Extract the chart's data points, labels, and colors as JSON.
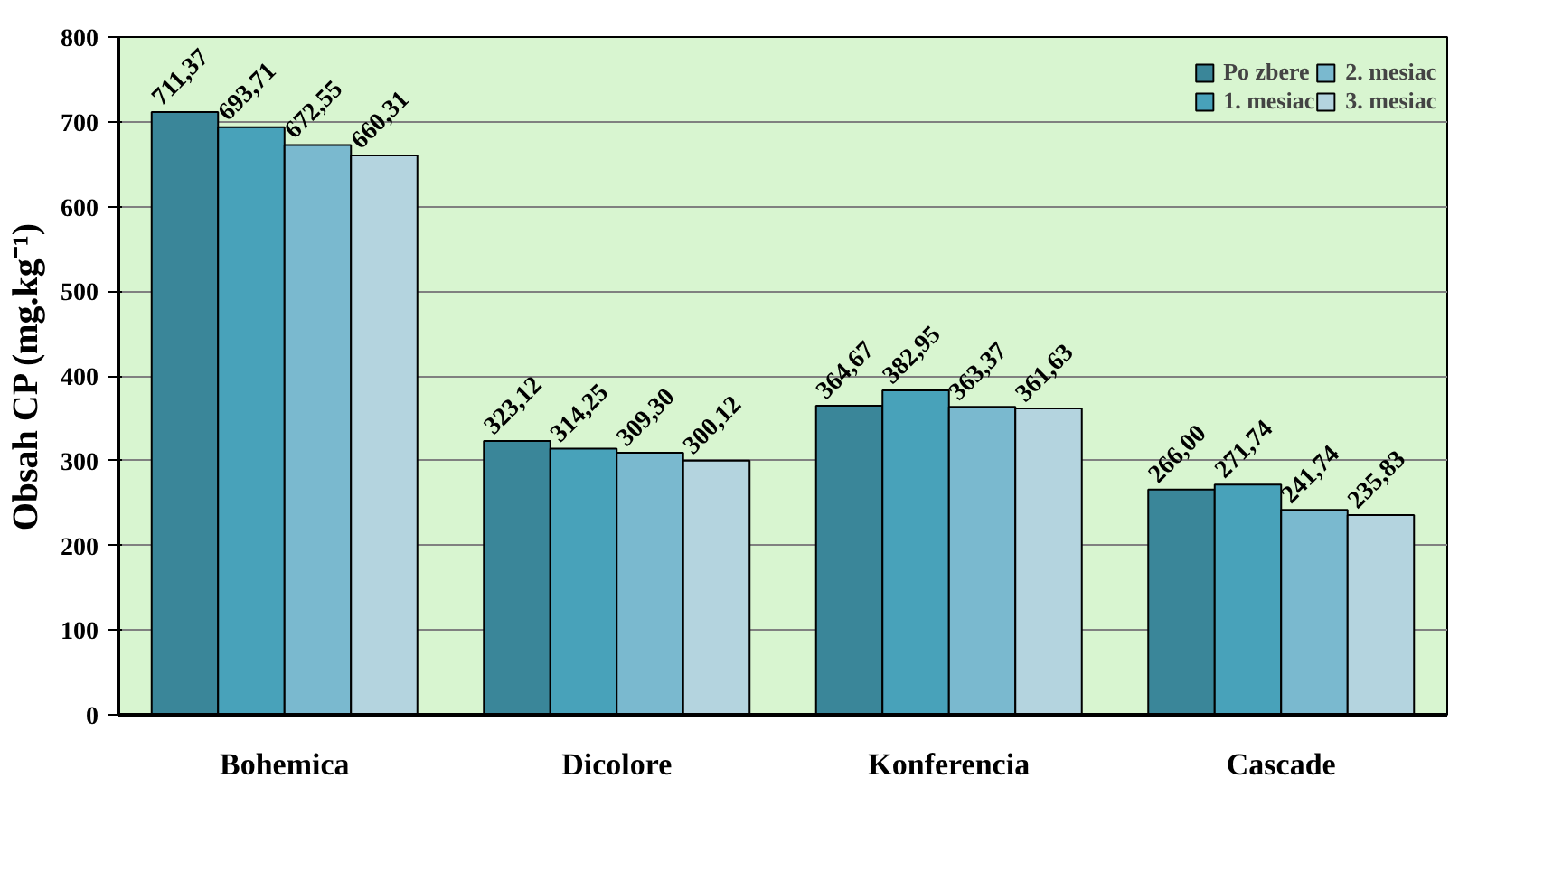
{
  "chart_data": {
    "type": "bar",
    "ylabel": "Obsah CP (mg.kg⁻¹)",
    "categories": [
      "Bohemica",
      "Dicolore",
      "Konferencia",
      "Cascade"
    ],
    "series": [
      {
        "name": "Po zbere",
        "color": "#3a8699",
        "values": [
          711.37,
          323.12,
          364.67,
          266.0
        ],
        "value_labels": [
          "711,37",
          "323,12",
          "364,67",
          "266,00"
        ]
      },
      {
        "name": "1. mesiac",
        "color": "#48a2ba",
        "values": [
          693.71,
          314.25,
          382.95,
          271.74
        ],
        "value_labels": [
          "693,71",
          "314,25",
          "382,95",
          "271,74"
        ]
      },
      {
        "name": "2. mesiac",
        "color": "#7ab9cf",
        "values": [
          672.55,
          309.3,
          363.37,
          241.74
        ],
        "value_labels": [
          "672,55",
          "309,30",
          "363,37",
          "241,74"
        ]
      },
      {
        "name": "3. mesiac",
        "color": "#b4d4df",
        "values": [
          660.31,
          300.12,
          361.63,
          235.83
        ],
        "value_labels": [
          "660,31",
          "300,12",
          "361,63",
          "235,83"
        ]
      }
    ],
    "ylim": [
      0,
      800
    ],
    "yticks": [
      0,
      100,
      200,
      300,
      400,
      500,
      600,
      700,
      800
    ],
    "grid": "y",
    "legend": "top right"
  }
}
